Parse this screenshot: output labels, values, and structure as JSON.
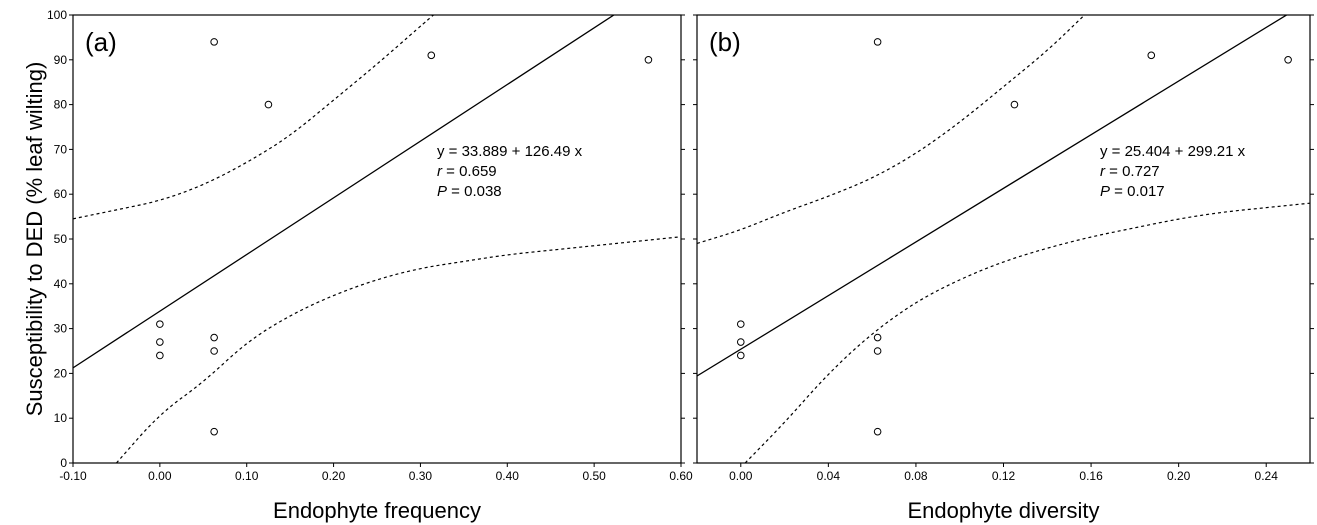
{
  "figure": {
    "ylabel": "Susceptibility to DED (% leaf wilting)"
  },
  "chart_data": [
    {
      "type": "scatter",
      "panel_label": "(a)",
      "xlabel": "Endophyte frequency",
      "ylabel": "Susceptibility to DED (% leaf wilting)",
      "xlim": [
        -0.1,
        0.6
      ],
      "ylim": [
        0,
        100
      ],
      "x_ticks": [
        -0.1,
        0.0,
        0.1,
        0.2,
        0.3,
        0.4,
        0.5,
        0.6
      ],
      "x_tick_labels": [
        "-0.10",
        "0.00",
        "0.10",
        "0.20",
        "0.30",
        "0.40",
        "0.50",
        "0.60"
      ],
      "y_ticks": [
        0,
        10,
        20,
        30,
        40,
        50,
        60,
        70,
        80,
        90,
        100
      ],
      "y_tick_labels": [
        "0",
        "10",
        "20",
        "30",
        "40",
        "50",
        "60",
        "70",
        "80",
        "90",
        "100"
      ],
      "points": [
        {
          "x": 0.0,
          "y": 31
        },
        {
          "x": 0.0,
          "y": 27
        },
        {
          "x": 0.0,
          "y": 24
        },
        {
          "x": 0.0625,
          "y": 94
        },
        {
          "x": 0.0625,
          "y": 28
        },
        {
          "x": 0.0625,
          "y": 25
        },
        {
          "x": 0.0625,
          "y": 7
        },
        {
          "x": 0.125,
          "y": 80
        },
        {
          "x": 0.3125,
          "y": 91
        },
        {
          "x": 0.5625,
          "y": 90
        }
      ],
      "fit": {
        "intercept": 33.889,
        "slope": 126.49
      },
      "ci_lower": [
        [
          -0.05,
          0
        ],
        [
          0.0,
          11
        ],
        [
          0.05,
          18
        ],
        [
          0.1,
          27
        ],
        [
          0.15,
          33
        ],
        [
          0.2,
          37.5
        ],
        [
          0.25,
          41
        ],
        [
          0.3,
          43.5
        ],
        [
          0.35,
          45
        ],
        [
          0.4,
          46.5
        ],
        [
          0.45,
          47.5
        ],
        [
          0.5,
          48.5
        ],
        [
          0.55,
          49.5
        ],
        [
          0.6,
          50.5
        ]
      ],
      "ci_upper": [
        [
          -0.1,
          54.5
        ],
        [
          -0.05,
          56.5
        ],
        [
          0.0,
          58.5
        ],
        [
          0.05,
          62
        ],
        [
          0.1,
          67
        ],
        [
          0.15,
          73
        ],
        [
          0.2,
          81
        ],
        [
          0.25,
          89
        ],
        [
          0.3,
          97.5
        ],
        [
          0.315,
          100
        ]
      ],
      "annotation": {
        "equation": "y = 33.889 + 126.49 x",
        "r_label": "r",
        "r_value": " = 0.659",
        "p_label": "P",
        "p_value": " = 0.038"
      }
    },
    {
      "type": "scatter",
      "panel_label": "(b)",
      "xlabel": "Endophyte diversity",
      "ylabel": "",
      "xlim": [
        -0.02,
        0.26
      ],
      "ylim": [
        0,
        100
      ],
      "x_ticks": [
        0.0,
        0.04,
        0.08,
        0.12,
        0.16,
        0.2,
        0.24
      ],
      "x_tick_labels": [
        "0.00",
        "0.04",
        "0.08",
        "0.12",
        "0.16",
        "0.20",
        "0.24"
      ],
      "y_ticks": [
        0,
        10,
        20,
        30,
        40,
        50,
        60,
        70,
        80,
        90,
        100
      ],
      "y_tick_labels": [],
      "points": [
        {
          "x": 0.0,
          "y": 31
        },
        {
          "x": 0.0,
          "y": 27
        },
        {
          "x": 0.0,
          "y": 24
        },
        {
          "x": 0.0625,
          "y": 94
        },
        {
          "x": 0.0625,
          "y": 28
        },
        {
          "x": 0.0625,
          "y": 25
        },
        {
          "x": 0.0625,
          "y": 7
        },
        {
          "x": 0.125,
          "y": 80
        },
        {
          "x": 0.1875,
          "y": 91
        },
        {
          "x": 0.25,
          "y": 90
        }
      ],
      "fit": {
        "intercept": 25.404,
        "slope": 299.21
      },
      "ci_lower": [
        [
          0.002,
          0
        ],
        [
          0.02,
          9
        ],
        [
          0.04,
          20
        ],
        [
          0.06,
          29
        ],
        [
          0.08,
          36
        ],
        [
          0.1,
          41
        ],
        [
          0.12,
          45
        ],
        [
          0.14,
          48
        ],
        [
          0.16,
          50.5
        ],
        [
          0.18,
          52.5
        ],
        [
          0.2,
          54.5
        ],
        [
          0.22,
          56
        ],
        [
          0.24,
          57
        ],
        [
          0.26,
          58
        ]
      ],
      "ci_upper": [
        [
          -0.02,
          49
        ],
        [
          0.0,
          52
        ],
        [
          0.02,
          56
        ],
        [
          0.04,
          59.5
        ],
        [
          0.06,
          63.5
        ],
        [
          0.08,
          69
        ],
        [
          0.1,
          76
        ],
        [
          0.12,
          84
        ],
        [
          0.14,
          92
        ],
        [
          0.157,
          100
        ]
      ],
      "annotation": {
        "equation": "y = 25.404 + 299.21 x",
        "r_label": "r",
        "r_value": " = 0.727",
        "p_label": "P",
        "p_value": " = 0.017"
      }
    }
  ]
}
